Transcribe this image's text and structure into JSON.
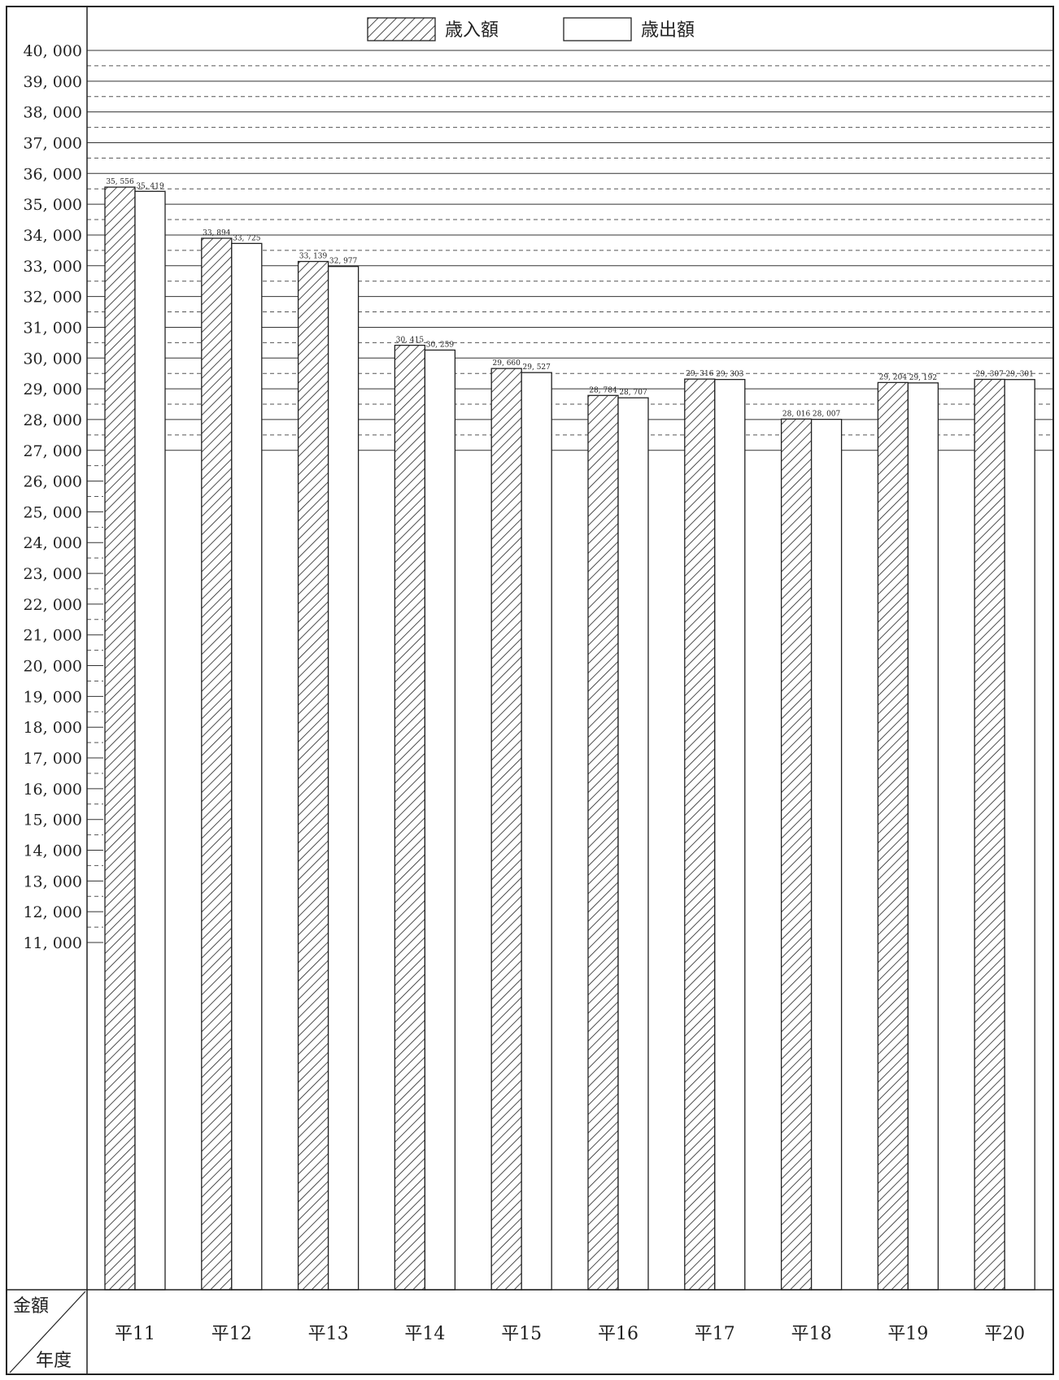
{
  "chart_data": {
    "type": "bar",
    "categories": [
      "平11",
      "平12",
      "平13",
      "平14",
      "平15",
      "平16",
      "平17",
      "平18",
      "平19",
      "平20"
    ],
    "series": [
      {
        "name": "歳入額",
        "pattern": "hatched",
        "values": [
          35556,
          33894,
          33139,
          30415,
          29660,
          28784,
          29316,
          28016,
          29204,
          29307
        ],
        "labels": [
          "35, 556",
          "33, 894",
          "33, 139",
          "30, 415",
          "29, 660",
          "28, 784",
          "29, 316",
          "28, 016",
          "29, 204",
          "29, 307"
        ]
      },
      {
        "name": "歳出額",
        "pattern": "plain",
        "values": [
          35419,
          33725,
          32977,
          30259,
          29527,
          28707,
          29303,
          28007,
          29192,
          29301
        ],
        "labels": [
          "35, 419",
          "33, 725",
          "32, 977",
          "30, 259",
          "29, 527",
          "28, 707",
          "29, 303",
          "28, 007",
          "29, 192",
          "29, 301"
        ]
      }
    ],
    "yticks": [
      "11, 000",
      "12, 000",
      "13, 000",
      "14, 000",
      "15, 000",
      "16, 000",
      "17, 000",
      "18, 000",
      "19, 000",
      "20, 000",
      "21, 000",
      "22, 000",
      "23, 000",
      "24, 000",
      "25, 000",
      "26, 000",
      "27, 000",
      "28, 000",
      "29, 000",
      "30, 000",
      "31, 000",
      "32, 000",
      "33, 000",
      "34, 000",
      "35, 000",
      "36, 000",
      "37, 000",
      "38, 000",
      "39, 000",
      "40, 000"
    ],
    "ylim": [
      11000,
      40000
    ],
    "axis_break": true,
    "grid": true,
    "legend_position": "top-center",
    "corner_labels": {
      "amount": "金額",
      "year": "年度"
    }
  }
}
